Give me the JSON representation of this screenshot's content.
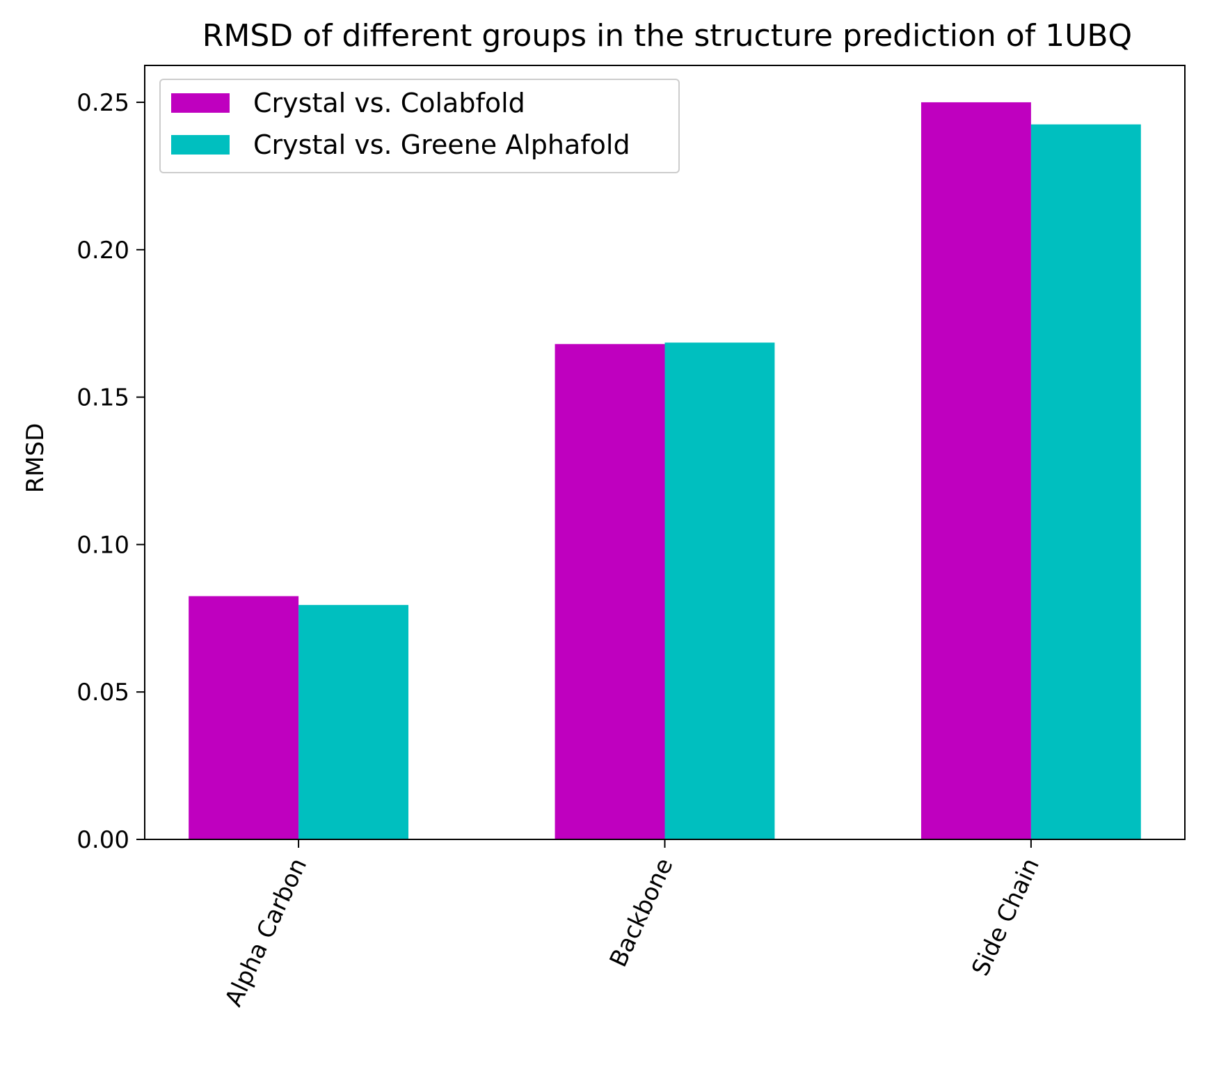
{
  "chart_data": {
    "type": "bar",
    "title": "RMSD of different groups in the structure prediction of 1UBQ",
    "xlabel": "",
    "ylabel": "RMSD",
    "categories": [
      "Alpha Carbon",
      "Backbone",
      "Side Chain"
    ],
    "series": [
      {
        "name": "Crystal vs. Colabfold",
        "color": "#bf00bf",
        "values": [
          0.0825,
          0.168,
          0.25
        ]
      },
      {
        "name": "Crystal vs. Greene Alphafold",
        "color": "#00bfbf",
        "values": [
          0.0795,
          0.1685,
          0.2425
        ]
      }
    ],
    "ylim": [
      0,
      0.2625
    ],
    "yticks": [
      "0.00",
      "0.05",
      "0.10",
      "0.15",
      "0.20",
      "0.25"
    ],
    "ytick_values": [
      0,
      0.05,
      0.1,
      0.15,
      0.2,
      0.25
    ],
    "legend_position": "top-left",
    "grid": false
  }
}
